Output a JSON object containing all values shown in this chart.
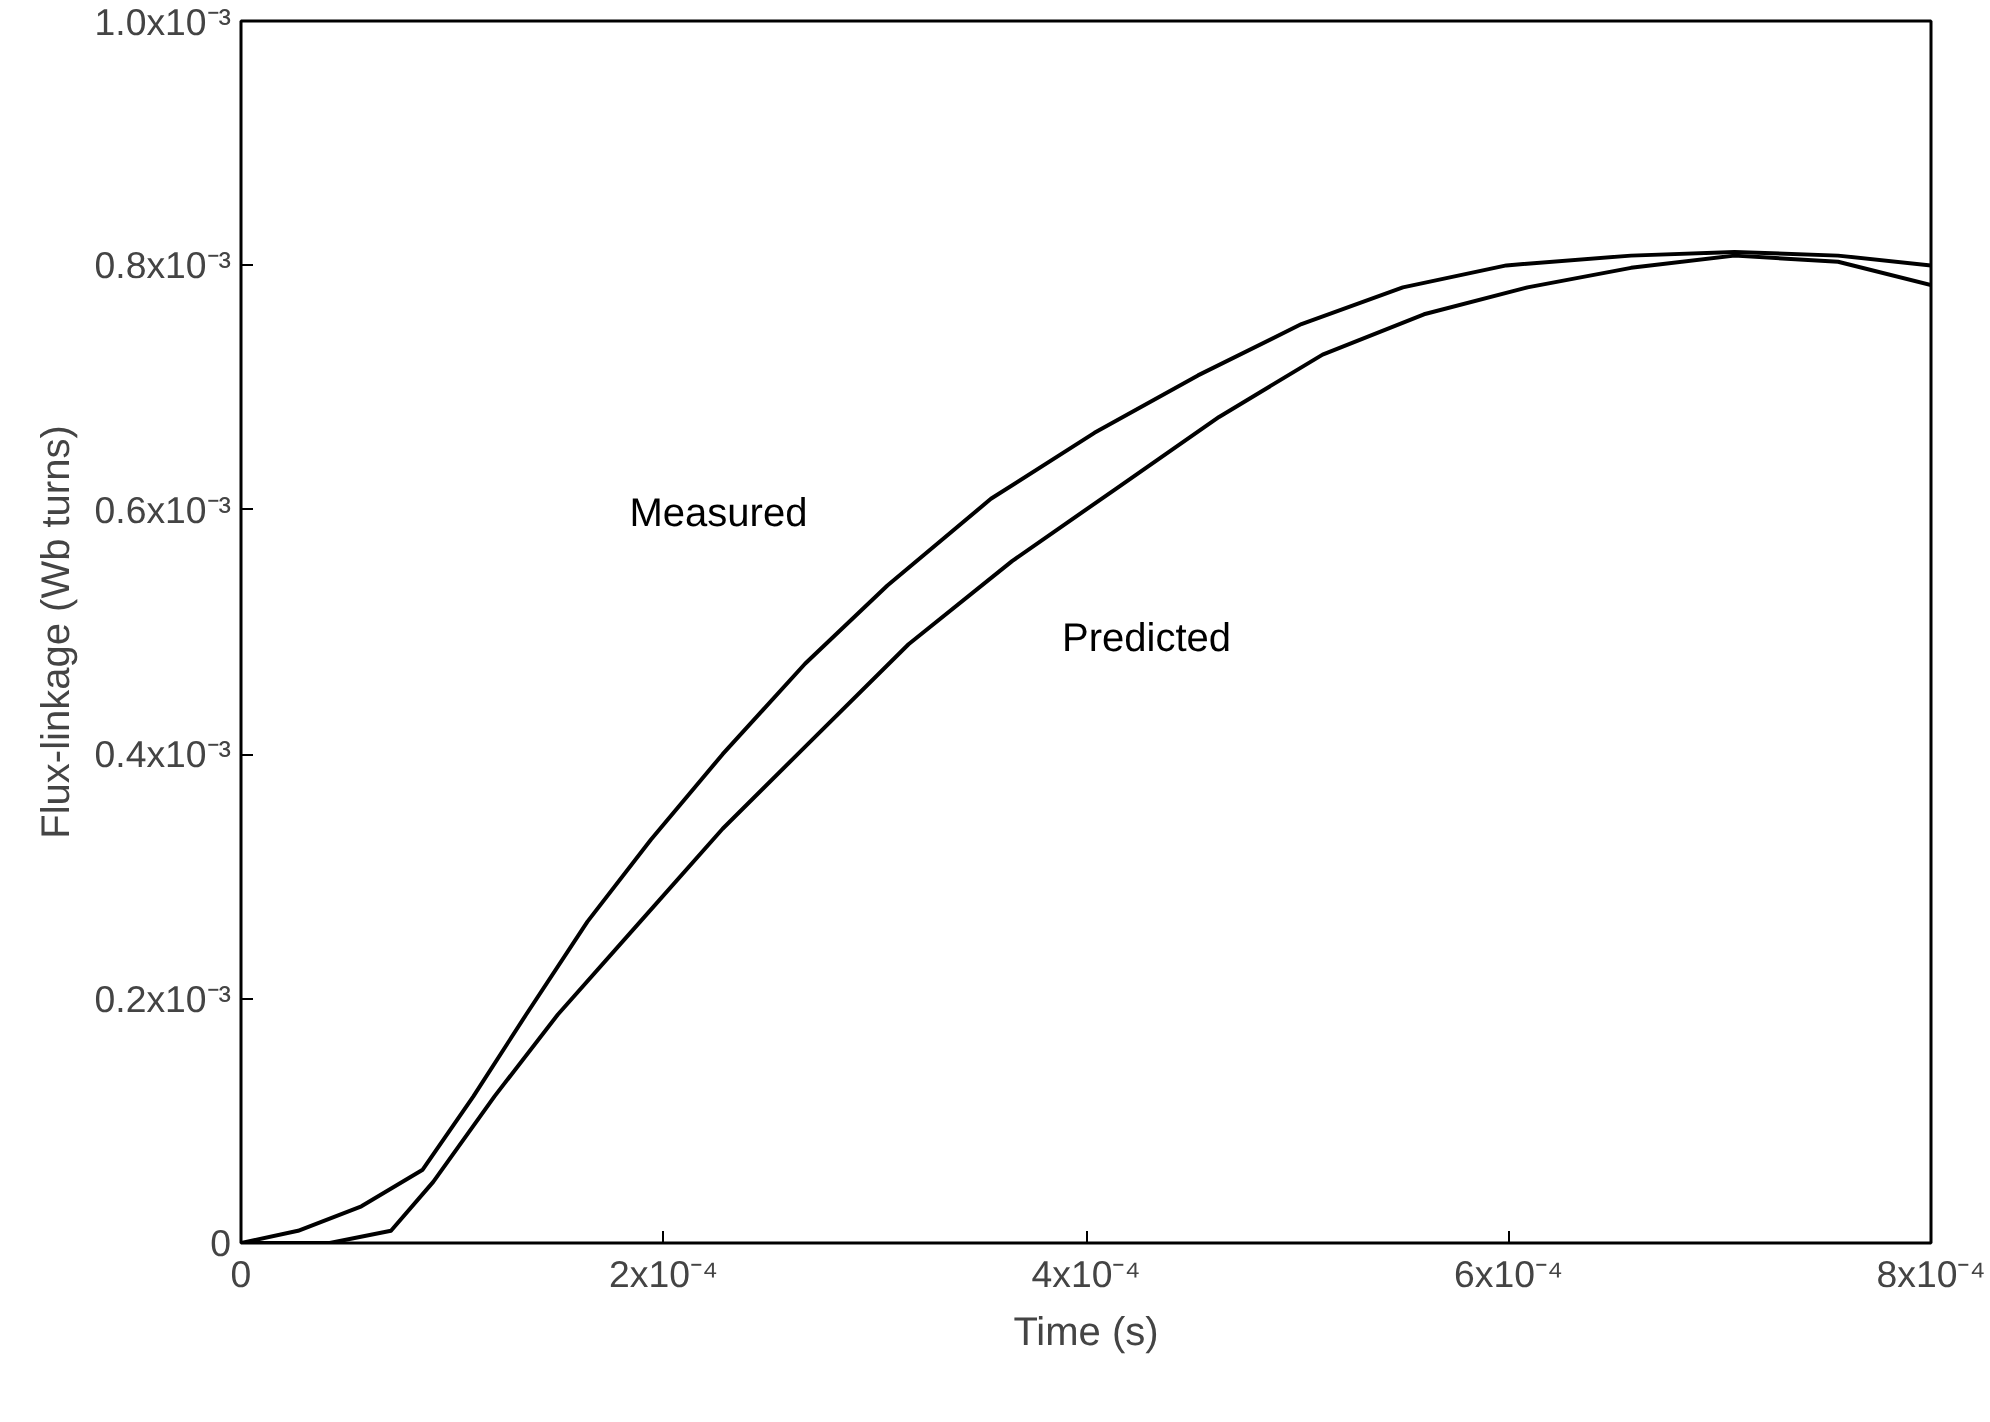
{
  "chart_data": {
    "type": "line",
    "xlabel": "Time (s)",
    "ylabel": "Flux-linkage (Wb turns)",
    "xlim": [
      0,
      0.0008
    ],
    "ylim": [
      0,
      0.001
    ],
    "xticks": [
      0,
      {
        "value": 0.0002,
        "label": "2x10⁻⁴"
      },
      {
        "value": 0.0004,
        "label": "4x10⁻⁴"
      },
      {
        "value": 0.0006,
        "label": "6x10⁻⁴"
      },
      {
        "value": 0.0008,
        "label": "8x10⁻⁴"
      }
    ],
    "yticks": [
      0,
      {
        "value": 0.0002,
        "label": "0.2x10⁻³"
      },
      {
        "value": 0.0004,
        "label": "0.4x10⁻³"
      },
      {
        "value": 0.0006,
        "label": "0.6x10⁻³"
      },
      {
        "value": 0.0008,
        "label": "0.8x10⁻³"
      },
      {
        "value": 0.001,
        "label": "1.0x10⁻³"
      }
    ],
    "grid": false,
    "marker": "none",
    "line_style": "solid",
    "series": [
      {
        "name": "Measured",
        "color": "#000000",
        "x": [
          0,
          2.7e-05,
          5.7e-05,
          8.6e-05,
          0.00011,
          0.000135,
          0.000164,
          0.000194,
          0.000228,
          0.000267,
          0.000306,
          0.000355,
          0.000404,
          0.000453,
          0.000502,
          0.00055,
          0.000599,
          0.000658,
          0.000707,
          0.000756,
          0.0008
        ],
        "values": [
          0,
          1e-05,
          3e-05,
          6e-05,
          0.00012,
          0.000187,
          0.000263,
          0.00033,
          0.0004,
          0.000474,
          0.000538,
          0.000609,
          0.000663,
          0.00071,
          0.000752,
          0.000782,
          0.0008,
          0.000808,
          0.000811,
          0.000808,
          0.0008
        ]
      },
      {
        "name": "Predicted",
        "color": "#000000",
        "x": [
          0,
          4.2e-05,
          7.1e-05,
          9.1e-05,
          0.00012,
          0.00015,
          0.000189,
          0.000228,
          0.000267,
          0.000316,
          0.000365,
          0.000414,
          0.000463,
          0.000512,
          0.00056,
          0.000609,
          0.000658,
          0.000707,
          0.000756,
          0.0008
        ],
        "values": [
          0,
          0,
          1e-05,
          5e-05,
          0.00012,
          0.000187,
          0.000263,
          0.000339,
          0.000406,
          0.00049,
          0.000558,
          0.000617,
          0.000676,
          0.000727,
          0.00076,
          0.000782,
          0.000798,
          0.000808,
          0.000803,
          0.000784
        ]
      }
    ]
  }
}
